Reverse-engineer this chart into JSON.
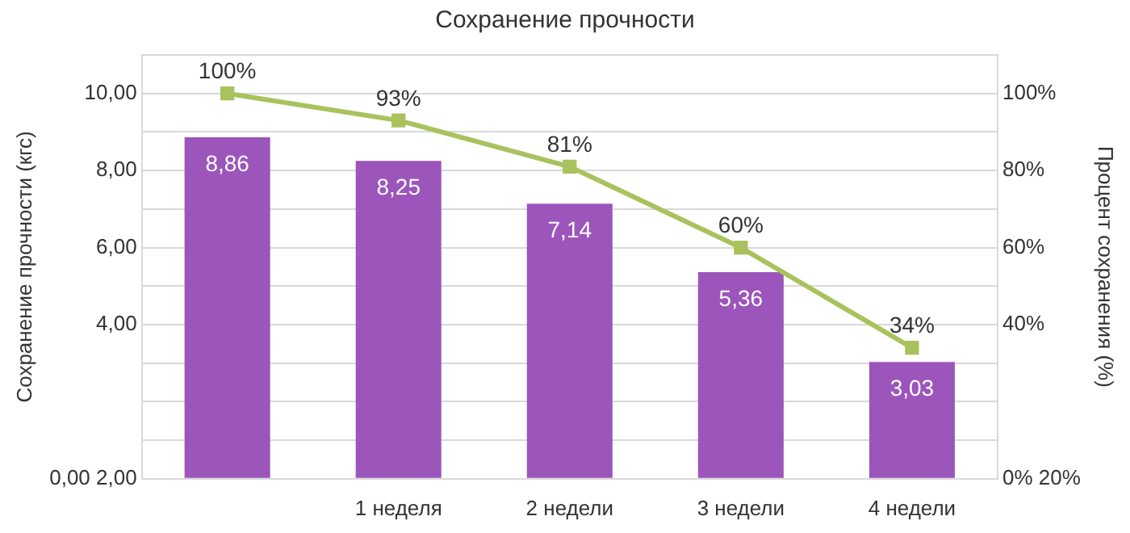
{
  "chart_data": {
    "type": "bar",
    "title": "Сохранение прочности",
    "categories": [
      null,
      "1 неделя",
      "2 недели",
      "3 недели",
      "4 недели"
    ],
    "series": [
      {
        "color": "#9c55bb",
        "values": [
          8.86,
          8.25,
          7.14,
          5.36,
          3.03
        ],
        "value_labels": [
          "8,86",
          "8,25",
          "7,14",
          "5,36",
          "3,03"
        ]
      },
      {
        "type": "line",
        "axis": "y2",
        "color": "#a9c25d",
        "marker": "square",
        "values": [
          100,
          93,
          81,
          60,
          34
        ],
        "value_labels": [
          "100%",
          "93%",
          "81%",
          "60%",
          "34%"
        ]
      }
    ],
    "ylabel": "Сохранение прочности (кгс)",
    "y2label": "Процент сохранения (%)",
    "ylim": [
      0,
      11
    ],
    "yticks": [
      {
        "value": 0,
        "label": "0,00 2,00"
      },
      {
        "value": 1,
        "label": null
      },
      {
        "value": 2,
        "label": null
      },
      {
        "value": 3,
        "label": null
      },
      {
        "value": 4,
        "label": "4,00"
      },
      {
        "value": 5,
        "label": null
      },
      {
        "value": 6,
        "label": "6,00"
      },
      {
        "value": 7,
        "label": null
      },
      {
        "value": 8,
        "label": "8,00"
      },
      {
        "value": 9,
        "label": null
      },
      {
        "value": 10,
        "label": "10,00"
      },
      {
        "value": 11,
        "label": null
      }
    ],
    "y2lim": [
      0,
      110
    ],
    "y2ticks": [
      {
        "value": 0,
        "label": "0% 20%"
      },
      {
        "value": 40,
        "label": "40%"
      },
      {
        "value": 60,
        "label": "60%"
      },
      {
        "value": 80,
        "label": "80%"
      },
      {
        "value": 100,
        "label": "100%"
      }
    ],
    "grid": "y",
    "legend": false
  }
}
